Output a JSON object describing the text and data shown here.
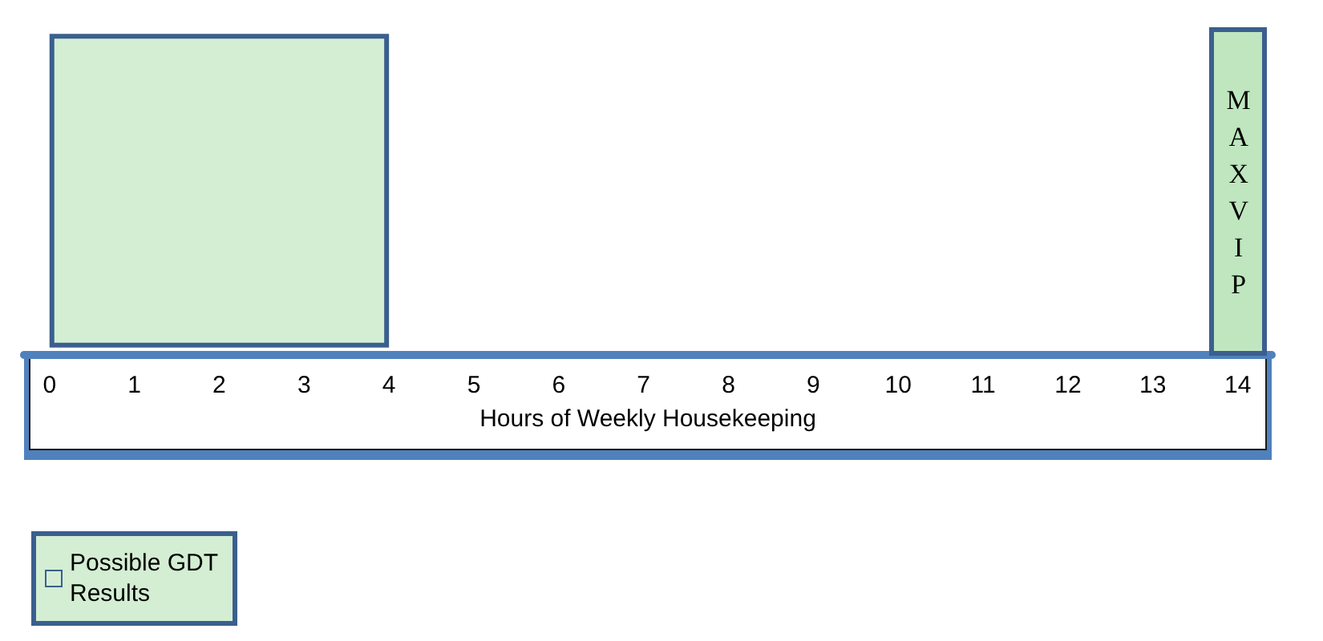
{
  "chart_data": {
    "type": "bar",
    "orientation": "horizontal",
    "categories": [
      null
    ],
    "series": [
      {
        "name": "Possible GDT Results",
        "color": "#d3eed3",
        "values": [
          4
        ]
      }
    ],
    "xlim": [
      -0.3,
      14.4
    ],
    "xticks": [
      0,
      1,
      2,
      3,
      4,
      5,
      6,
      7,
      8,
      9,
      10,
      11,
      12,
      13,
      14
    ],
    "xlabel": "Hours of Weekly Housekeeping",
    "ref_lines": [
      {
        "axis": "x",
        "value": 14,
        "label": "MAXVIP",
        "color": "#bfe6bf"
      }
    ],
    "legend": "bottom left"
  }
}
